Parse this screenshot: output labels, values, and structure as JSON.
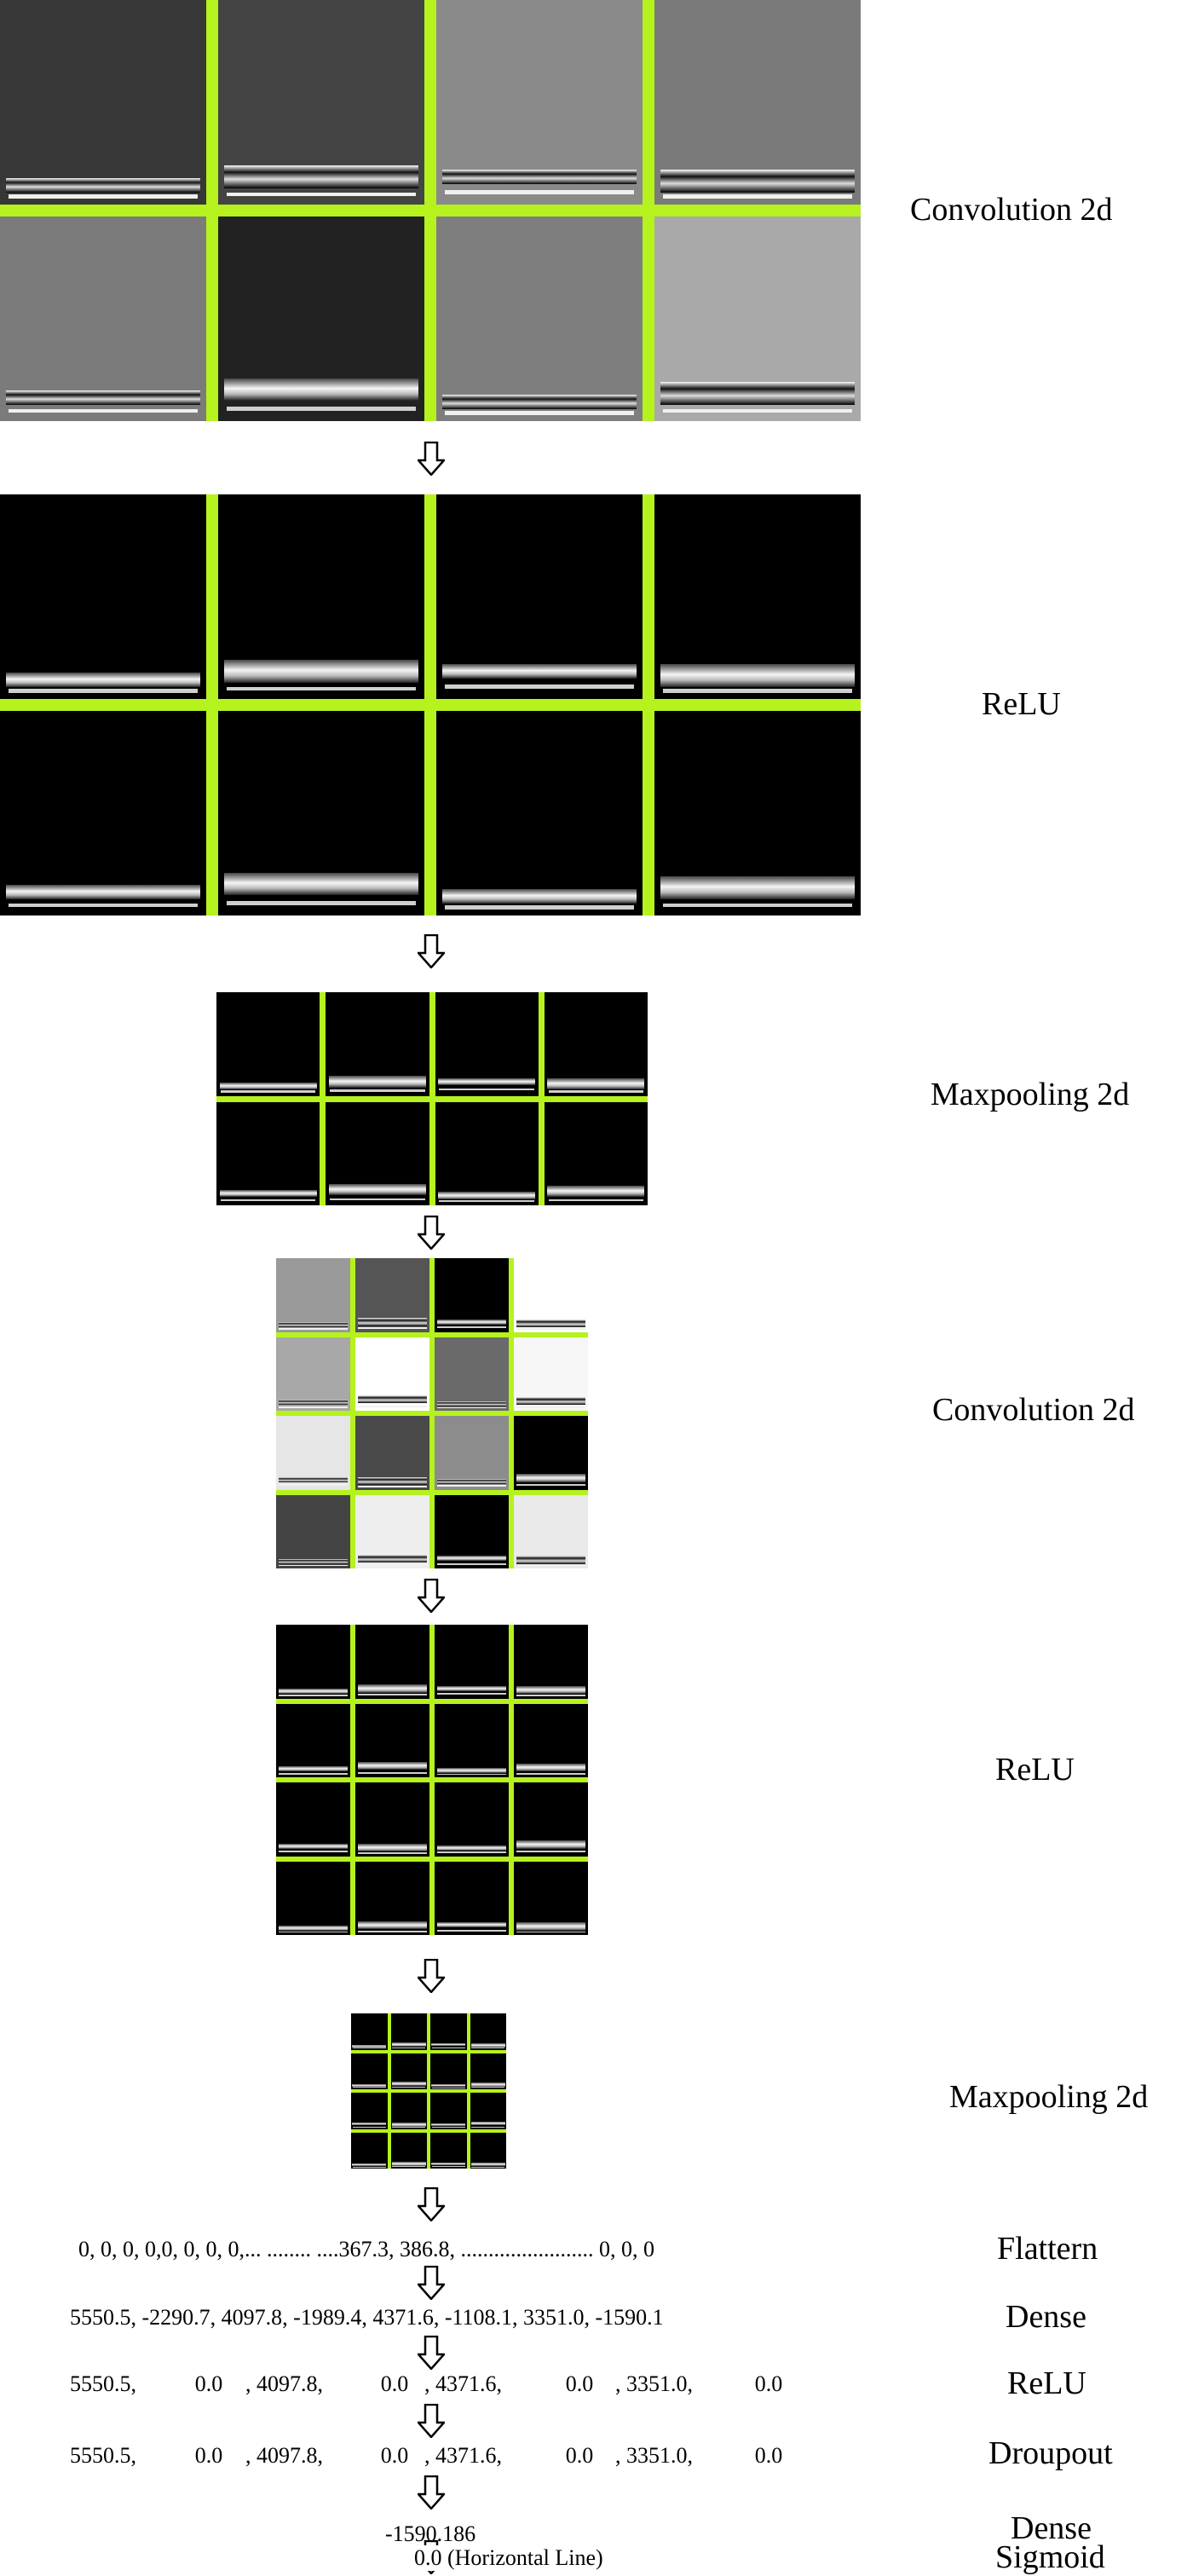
{
  "accent_color": "#b5f21e",
  "layers": [
    {
      "id": "conv1",
      "label": "Convolution 2d"
    },
    {
      "id": "relu1",
      "label": "ReLU"
    },
    {
      "id": "pool1",
      "label": "Maxpooling 2d"
    },
    {
      "id": "conv2",
      "label": "Convolution 2d"
    },
    {
      "id": "relu2",
      "label": "ReLU"
    },
    {
      "id": "pool2",
      "label": "Maxpooling 2d"
    }
  ],
  "feature_maps": {
    "conv1": [
      "#373737",
      "#444444",
      "#8a8a8a",
      "#7a7a7a",
      "#7b7b7b",
      "#222222",
      "#7e7e7e",
      "#a9a9a9"
    ],
    "relu1": [
      "#000000",
      "#000000",
      "#000000",
      "#000000",
      "#000000",
      "#000000",
      "#000000",
      "#000000"
    ],
    "pool1": [
      "#000000",
      "#000000",
      "#000000",
      "#000000",
      "#000000",
      "#000000",
      "#000000",
      "#000000"
    ],
    "conv2": [
      "#9a9a9a",
      "#555555",
      "#000000",
      "#ffffff",
      "#a8a8a8",
      "#ffffff",
      "#6a6a6a",
      "#f7f7f7",
      "#e6e6e6",
      "#4a4a4a",
      "#8c8c8c",
      "#000000",
      "#444444",
      "#eeeeee",
      "#000000",
      "#eaeaea"
    ],
    "relu2": [
      "#000000",
      "#000000",
      "#000000",
      "#000000",
      "#000000",
      "#000000",
      "#000000",
      "#000000",
      "#000000",
      "#000000",
      "#000000",
      "#000000",
      "#000000",
      "#000000",
      "#000000",
      "#000000"
    ],
    "pool2": [
      "#000000",
      "#000000",
      "#000000",
      "#000000",
      "#000000",
      "#000000",
      "#000000",
      "#000000",
      "#000000",
      "#000000",
      "#000000",
      "#000000",
      "#000000",
      "#000000",
      "#000000",
      "#000000"
    ]
  },
  "vector_rows": [
    {
      "label": "Flattern",
      "text": "0, 0, 0, 0,0, 0, 0, 0,... ........ ....367.3, 386.8, ........................  0, 0, 0"
    },
    {
      "label": "Dense",
      "text": "5550.5, -2290.7, 4097.8, -1989.4, 4371.6, -1108.1, 3351.0, -1590.1"
    },
    {
      "label": "ReLU",
      "values": [
        "5550.5,",
        "0.0",
        ", 4097.8,",
        "0.0",
        ", 4371.6,",
        "0.0",
        ", 3351.0,",
        "0.0"
      ]
    },
    {
      "label": "Droupout",
      "values": [
        "5550.5,",
        "0.0",
        ", 4097.8,",
        "0.0",
        ", 4371.6,",
        "0.0",
        ", 3351.0,",
        "0.0"
      ]
    },
    {
      "label": "Dense",
      "text": "-1590.186"
    },
    {
      "label": "Sigmoid",
      "text": "0.0 (Horizontal Line)"
    }
  ]
}
